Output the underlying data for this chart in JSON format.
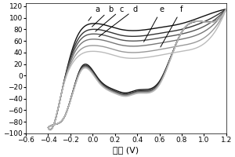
{
  "xlabel": "电压 (V)",
  "xlim": [
    -0.6,
    1.2
  ],
  "ylim": [
    -100,
    125
  ],
  "yticks": [
    -100,
    -80,
    -60,
    -40,
    -20,
    0,
    20,
    40,
    60,
    80,
    100,
    120
  ],
  "xticks": [
    -0.6,
    -0.4,
    -0.2,
    0.0,
    0.2,
    0.4,
    0.6,
    0.8,
    1.0,
    1.2
  ],
  "labels": [
    "a",
    "b",
    "c",
    "d",
    "e",
    "f"
  ],
  "colors": [
    "#111111",
    "#333333",
    "#555555",
    "#777777",
    "#999999",
    "#bbbbbb"
  ],
  "anodic_peaks": [
    90,
    80,
    72,
    63,
    52,
    42
  ],
  "cathodic_troughs": [
    -30,
    -32,
    -33,
    -34,
    -35,
    -36
  ],
  "background": "#ffffff"
}
